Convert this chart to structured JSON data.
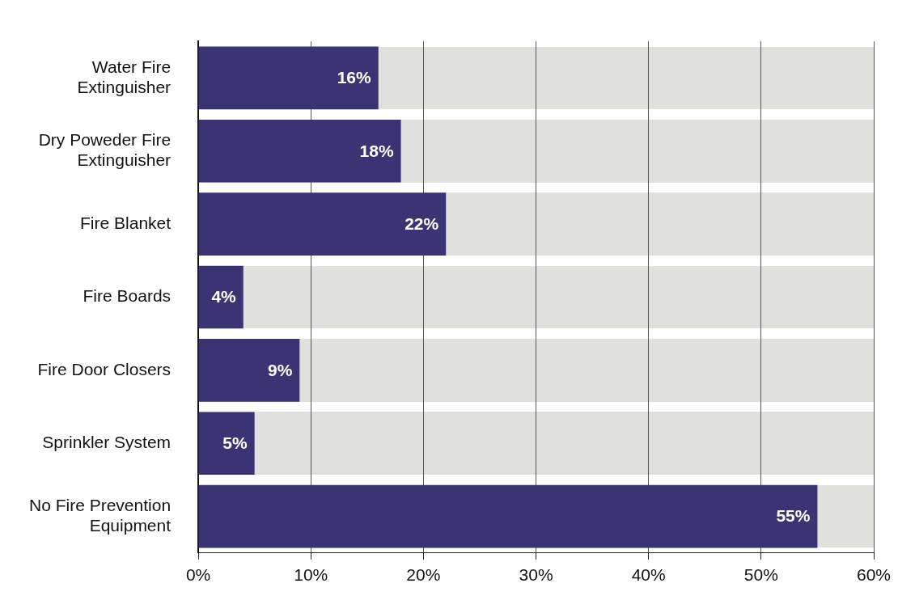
{
  "chart_data": {
    "type": "bar",
    "orientation": "horizontal",
    "categories": [
      "Water Fire Extinguisher",
      "Dry Poweder Fire Extinguisher",
      "Fire Blanket",
      "Fire Boards",
      "Fire Door Closers",
      "Sprinkler System",
      "No Fire Prevention Equipment"
    ],
    "values": [
      16,
      18,
      22,
      4,
      9,
      5,
      55
    ],
    "value_labels": [
      "16%",
      "18%",
      "22%",
      "4%",
      "9%",
      "5%",
      "55%"
    ],
    "color": "#3a3374",
    "xlim": [
      0,
      60
    ],
    "xticks": [
      {
        "value": 0,
        "label": "0%"
      },
      {
        "value": 10,
        "label": "10%"
      },
      {
        "value": 20,
        "label": "20%"
      },
      {
        "value": 30,
        "label": "30%"
      },
      {
        "value": 40,
        "label": "40%"
      },
      {
        "value": 50,
        "label": "50%"
      },
      {
        "value": 60,
        "label": "60%"
      }
    ],
    "grid": "x",
    "legend": false
  }
}
